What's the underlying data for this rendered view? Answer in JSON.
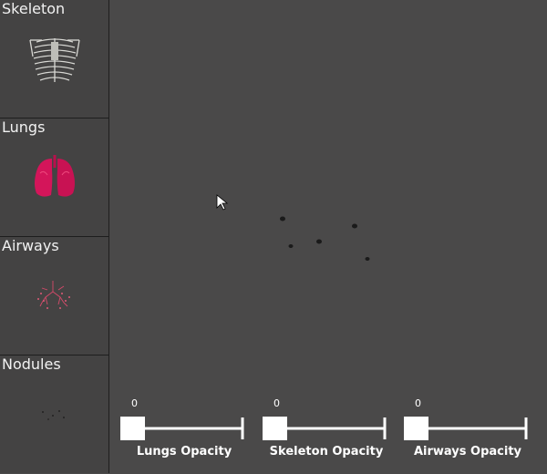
{
  "panels": [
    {
      "label": "Skeleton",
      "icon": "skeleton-thumbnail"
    },
    {
      "label": "Lungs",
      "icon": "lungs-thumbnail"
    },
    {
      "label": "Airways",
      "icon": "airways-thumbnail"
    },
    {
      "label": "Nodules",
      "icon": "nodules-thumbnail"
    }
  ],
  "viewport": {
    "background": "#4a4949",
    "nodule_color": "#1a1a1a",
    "cursor_icon": "arrow-cursor-icon"
  },
  "sliders": [
    {
      "label": "Lungs Opacity",
      "value": "0",
      "fraction": 0
    },
    {
      "label": "Skeleton Opacity",
      "value": "0",
      "fraction": 0
    },
    {
      "label": "Airways Opacity",
      "value": "0",
      "fraction": 0
    }
  ],
  "colors": {
    "lungs": "#d4155a",
    "airways": "#d64a6a",
    "skeleton": "#d0d0cc",
    "sidebar_bg": "#444343"
  }
}
